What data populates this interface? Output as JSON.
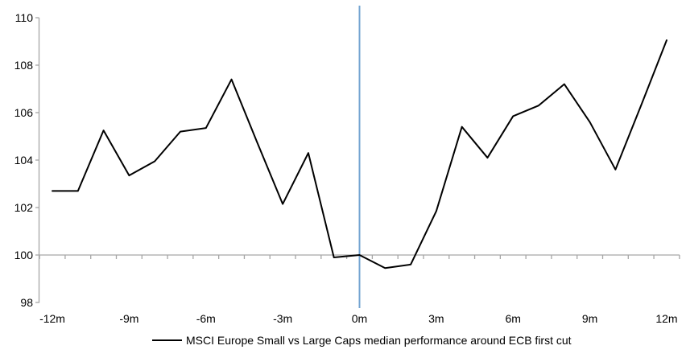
{
  "chart_data": {
    "type": "line",
    "title": "",
    "xlabel": "",
    "ylabel": "",
    "x": [
      -12,
      -11,
      -10,
      -9,
      -8,
      -7,
      -6,
      -5,
      -4,
      -3,
      -2,
      -1,
      0,
      1,
      2,
      3,
      4,
      5,
      6,
      7,
      8,
      9,
      10,
      11,
      12
    ],
    "series": [
      {
        "name": "MSCI Europe Small vs Large Caps median performance around ECB first cut",
        "color": "#000000",
        "values": [
          102.7,
          102.7,
          105.25,
          103.35,
          103.95,
          105.2,
          105.35,
          107.4,
          104.75,
          102.15,
          104.3,
          99.9,
          100.0,
          99.45,
          99.6,
          101.85,
          105.4,
          104.1,
          105.85,
          106.3,
          107.2,
          105.6,
          103.6,
          106.3,
          109.05
        ]
      }
    ],
    "x_tick_labels": [
      "-12m",
      "-9m",
      "-6m",
      "-3m",
      "0m",
      "3m",
      "6m",
      "9m",
      "12m"
    ],
    "x_tick_positions": [
      -12,
      -9,
      -6,
      -3,
      0,
      3,
      6,
      9,
      12
    ],
    "y_ticks": [
      110,
      108,
      106,
      104,
      102,
      100,
      98
    ],
    "ylim": [
      98,
      110
    ],
    "xlim": [
      -12,
      12
    ],
    "baseline": 100,
    "event_line_at_x": 0,
    "grid": "off",
    "legend_position": "bottom-center",
    "colors": {
      "series": "#000000",
      "event_line": "#74A5D2",
      "axis": "#A6A6A6",
      "text": "#000000",
      "background": "#FFFFFF"
    }
  }
}
